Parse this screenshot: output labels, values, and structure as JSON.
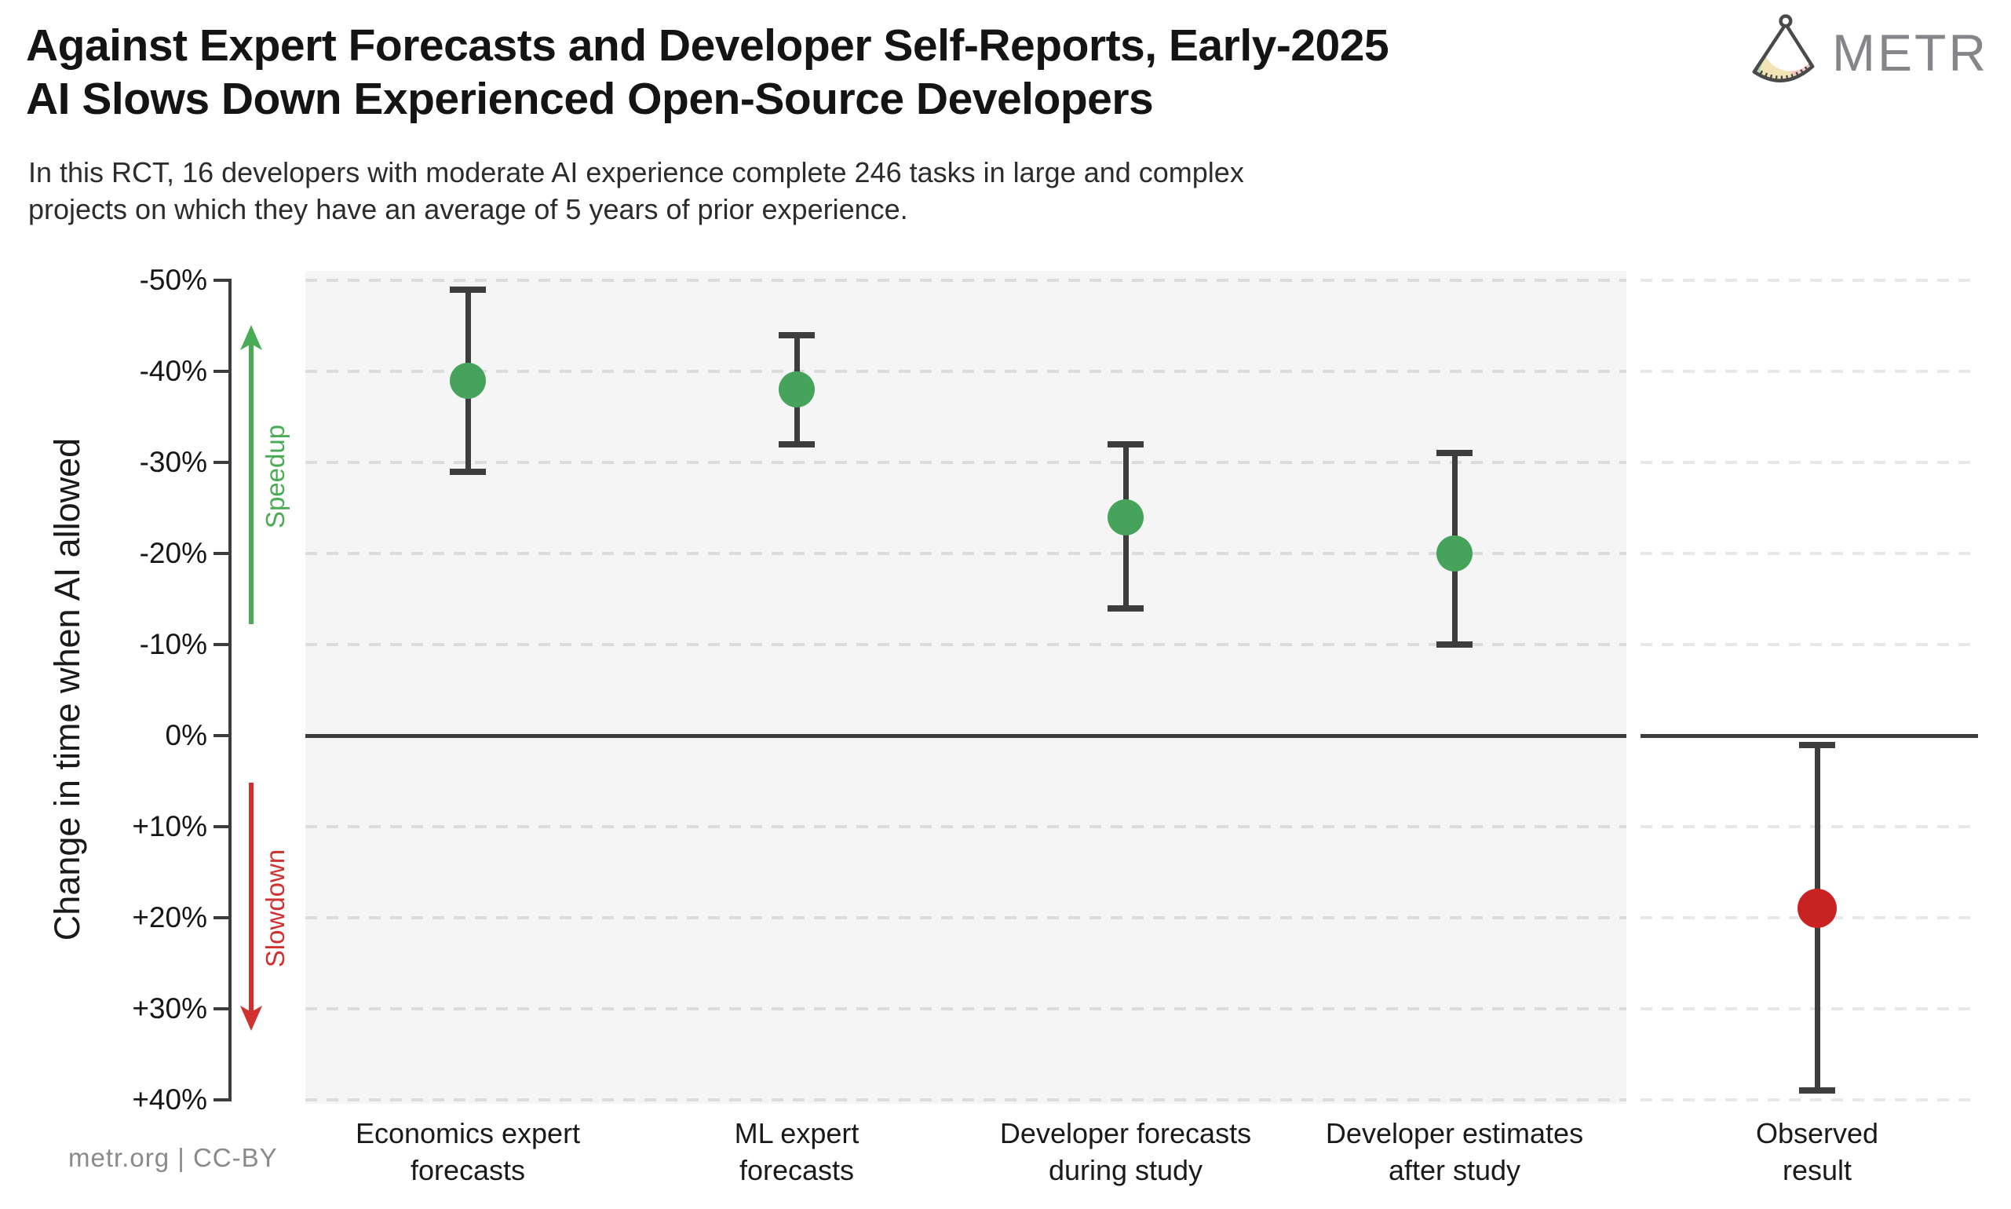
{
  "header": {
    "title_line1": "Against Expert Forecasts and Developer Self-Reports, Early-2025",
    "title_line2": "AI Slows Down Experienced Open-Source Developers",
    "subtitle_line1": "In this RCT, 16 developers with moderate AI experience complete 246 tasks in large and complex",
    "subtitle_line2": "projects on which they have an average of 5 years of prior experience.",
    "brand": "METR"
  },
  "footer": {
    "credit": "metr.org  |  CC-BY"
  },
  "chart_data": {
    "type": "scatter",
    "subtype": "point-estimates-with-error-bars",
    "title": "Against Expert Forecasts and Developer Self-Reports, Early-2025 AI Slows Down Experienced Open-Source Developers",
    "ylabel": "Change in time when AI allowed",
    "xlabel": "",
    "ylim": [
      -50,
      40
    ],
    "y_axis_inverted": true,
    "grid": "dashed horizontal",
    "legend_position": "none",
    "yticks": [
      {
        "value": -50,
        "label": "-50%"
      },
      {
        "value": -40,
        "label": "-40%"
      },
      {
        "value": -30,
        "label": "-30%"
      },
      {
        "value": -20,
        "label": "-20%"
      },
      {
        "value": -10,
        "label": "-10%"
      },
      {
        "value": 0,
        "label": "0%"
      },
      {
        "value": 10,
        "label": "+10%"
      },
      {
        "value": 20,
        "label": "+20%"
      },
      {
        "value": 30,
        "label": "+30%"
      },
      {
        "value": 40,
        "label": "+40%"
      }
    ],
    "annotations": {
      "speedup": "Speedup",
      "slowdown": "Slowdown"
    },
    "series": [
      {
        "name": "Economics expert forecasts",
        "label_lines": [
          "Economics expert",
          "forecasts"
        ],
        "mean": -39,
        "ci": [
          -49,
          -29
        ],
        "marker": "green",
        "panel": "main"
      },
      {
        "name": "ML expert forecasts",
        "label_lines": [
          "ML expert",
          "forecasts"
        ],
        "mean": -38,
        "ci": [
          -44,
          -32
        ],
        "marker": "green",
        "panel": "main"
      },
      {
        "name": "Developer forecasts during study",
        "label_lines": [
          "Developer forecasts",
          "during study"
        ],
        "mean": -24,
        "ci": [
          -32,
          -14
        ],
        "marker": "green",
        "panel": "main"
      },
      {
        "name": "Developer estimates after study",
        "label_lines": [
          "Developer estimates",
          "after study"
        ],
        "mean": -20,
        "ci": [
          -31,
          -10
        ],
        "marker": "green",
        "panel": "main"
      },
      {
        "name": "Observed result",
        "label_lines": [
          "Observed",
          "result"
        ],
        "mean": 19,
        "ci": [
          1,
          39
        ],
        "marker": "red",
        "panel": "observed"
      }
    ]
  },
  "colors": {
    "marker_green": "#46a35c",
    "marker_red": "#c92222",
    "errorbar": "#3d3d3d",
    "axis": "#3d3d3d",
    "zero_line": "#3d3d3d",
    "speedup_green": "#4bab55",
    "slowdown_red": "#d22f2f",
    "panel_background": "#f5f5f5",
    "gridline_main": "#dcdcdc",
    "gridline_observed": "#e8e8e8",
    "brand_gray": "#84868a",
    "credit_gray": "#8a8a8a",
    "logo_green": "#b9dab2",
    "logo_yellow": "#f2e4b4",
    "logo_pink": "#f4c7c7",
    "logo_outline": "#4a4a4a"
  }
}
